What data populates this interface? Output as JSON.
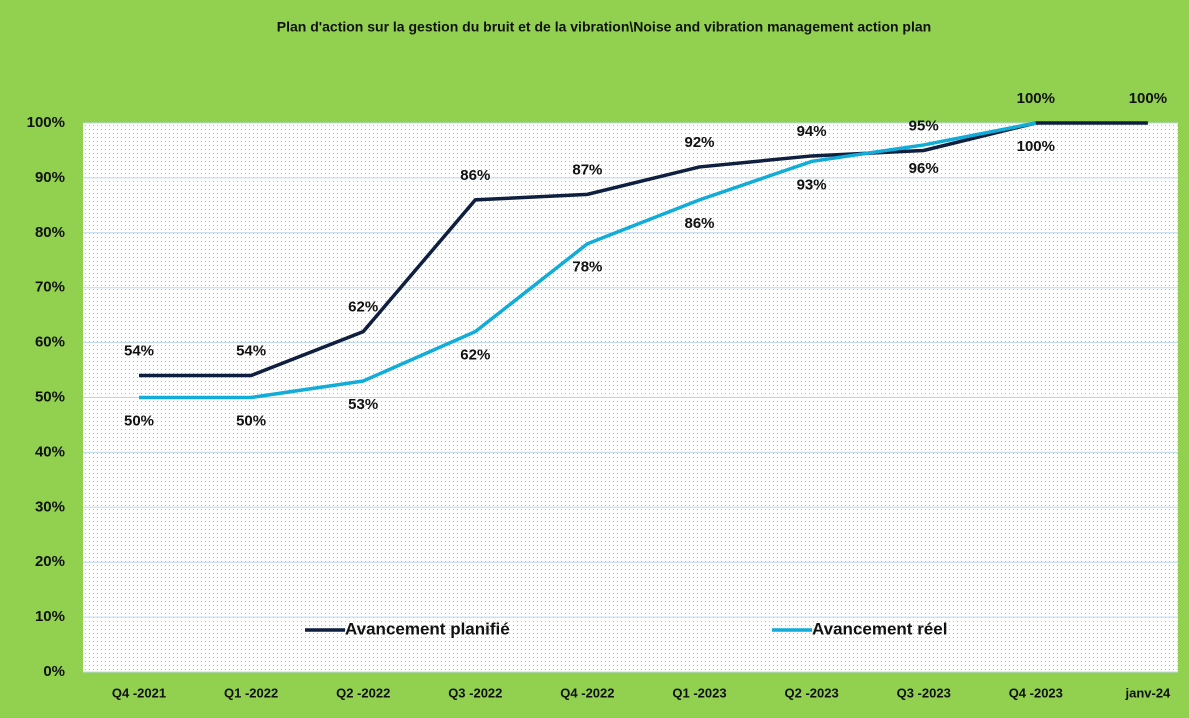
{
  "chart_data": {
    "type": "line",
    "title": "Plan d'action sur la gestion du bruit et de la vibration\\Noise and vibration management action plan",
    "categories": [
      "Q4 -2021",
      "Q1 -2022",
      "Q2 -2022",
      "Q3 -2022",
      "Q4 -2022",
      "Q1 -2023",
      "Q2 -2023",
      "Q3 -2023",
      "Q4 -2023",
      "janv-24"
    ],
    "series": [
      {
        "name": "Avancement planifié",
        "color": "#0e1f3f",
        "values": [
          54,
          54,
          62,
          86,
          87,
          92,
          94,
          95,
          100,
          100
        ],
        "value_labels": [
          "54%",
          "54%",
          "62%",
          "86%",
          "87%",
          "92%",
          "94%",
          "95%",
          "100%",
          "100%"
        ]
      },
      {
        "name": "Avancement réel",
        "color": "#12acd9",
        "values": [
          50,
          50,
          53,
          62,
          78,
          86,
          93,
          96,
          100,
          null
        ],
        "value_labels": [
          "50%",
          "50%",
          "53%",
          "62%",
          "78%",
          "86%",
          "93%",
          "96%",
          "100%",
          null
        ]
      }
    ],
    "ylim": [
      0,
      100
    ],
    "yticks": [
      {
        "value": 0,
        "label": "0%"
      },
      {
        "value": 10,
        "label": "10%"
      },
      {
        "value": 20,
        "label": "20%"
      },
      {
        "value": 30,
        "label": "30%"
      },
      {
        "value": 40,
        "label": "40%"
      },
      {
        "value": 50,
        "label": "50%"
      },
      {
        "value": 60,
        "label": "60%"
      },
      {
        "value": 70,
        "label": "70%"
      },
      {
        "value": 80,
        "label": "80%"
      },
      {
        "value": 90,
        "label": "90%"
      },
      {
        "value": 100,
        "label": "100%"
      }
    ],
    "grid": true,
    "legend": "bottom"
  }
}
